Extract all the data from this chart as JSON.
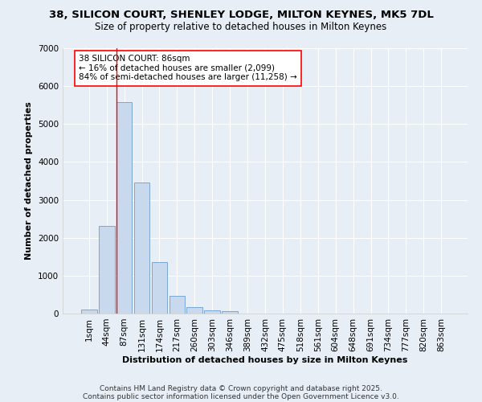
{
  "title_line1": "38, SILICON COURT, SHENLEY LODGE, MILTON KEYNES, MK5 7DL",
  "title_line2": "Size of property relative to detached houses in Milton Keynes",
  "xlabel": "Distribution of detached houses by size in Milton Keynes",
  "ylabel": "Number of detached properties",
  "bar_labels": [
    "1sqm",
    "44sqm",
    "87sqm",
    "131sqm",
    "174sqm",
    "217sqm",
    "260sqm",
    "303sqm",
    "346sqm",
    "389sqm",
    "432sqm",
    "475sqm",
    "518sqm",
    "561sqm",
    "604sqm",
    "648sqm",
    "691sqm",
    "734sqm",
    "777sqm",
    "820sqm",
    "863sqm"
  ],
  "bar_values": [
    100,
    2320,
    5570,
    3450,
    1360,
    460,
    175,
    90,
    55,
    0,
    0,
    0,
    0,
    0,
    0,
    0,
    0,
    0,
    0,
    0,
    0
  ],
  "bar_color": "#c8d9ee",
  "bar_edge_color": "#7ba7d4",
  "bar_edge_width": 0.7,
  "bg_color": "#e8eef5",
  "grid_color": "#ffffff",
  "annotation_text": "38 SILICON COURT: 86sqm\n← 16% of detached houses are smaller (2,099)\n84% of semi-detached houses are larger (11,258) →",
  "red_line_bar_index": 2,
  "ylim": [
    0,
    7000
  ],
  "yticks": [
    0,
    1000,
    2000,
    3000,
    4000,
    5000,
    6000,
    7000
  ],
  "footer_line1": "Contains HM Land Registry data © Crown copyright and database right 2025.",
  "footer_line2": "Contains public sector information licensed under the Open Government Licence v3.0.",
  "title_fontsize": 9.5,
  "subtitle_fontsize": 8.5,
  "annotation_fontsize": 7.5,
  "axis_label_fontsize": 8,
  "tick_fontsize": 7.5,
  "footer_fontsize": 6.5
}
